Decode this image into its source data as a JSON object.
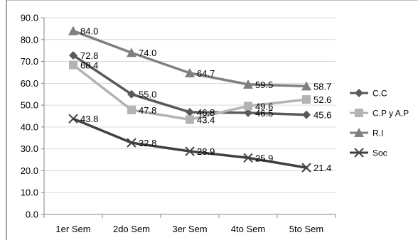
{
  "chart_data": {
    "type": "line",
    "categories": [
      "1er Sem",
      "2do Sem",
      "3er Sem",
      "4to Sem",
      "5to Sem"
    ],
    "ylim": [
      0,
      90
    ],
    "yticks": [
      "0.0",
      "10.0",
      "20.0",
      "30.0",
      "40.0",
      "50.0",
      "60.0",
      "70.0",
      "80.0",
      "90.0"
    ],
    "grid": true,
    "legend_position": "right",
    "series": [
      {
        "name": "C.C",
        "values": [
          72.8,
          55.0,
          46.8,
          46.5,
          45.6
        ],
        "labels": [
          "72.8",
          "55.0",
          "46.8",
          "46.5",
          "45.6"
        ],
        "color": "#595959",
        "marker": "diamond"
      },
      {
        "name": "C.P y A.P",
        "values": [
          68.4,
          47.8,
          43.4,
          49.6,
          52.6
        ],
        "labels": [
          "68.4",
          "47.8",
          "43.4",
          "49.6",
          "52.6"
        ],
        "color": "#b3b3b3",
        "marker": "square"
      },
      {
        "name": "R.I",
        "values": [
          84.0,
          74.0,
          64.7,
          59.5,
          58.7
        ],
        "labels": [
          "84.0",
          "74.0",
          "64.7",
          "59.5",
          "58.7"
        ],
        "color": "#808080",
        "marker": "triangle"
      },
      {
        "name": "Soc",
        "values": [
          43.8,
          32.8,
          28.9,
          25.9,
          21.4
        ],
        "labels": [
          "43.8",
          "32.8",
          "28.9",
          "25.9",
          "21.4"
        ],
        "color": "#404040",
        "marker": "x"
      }
    ]
  }
}
